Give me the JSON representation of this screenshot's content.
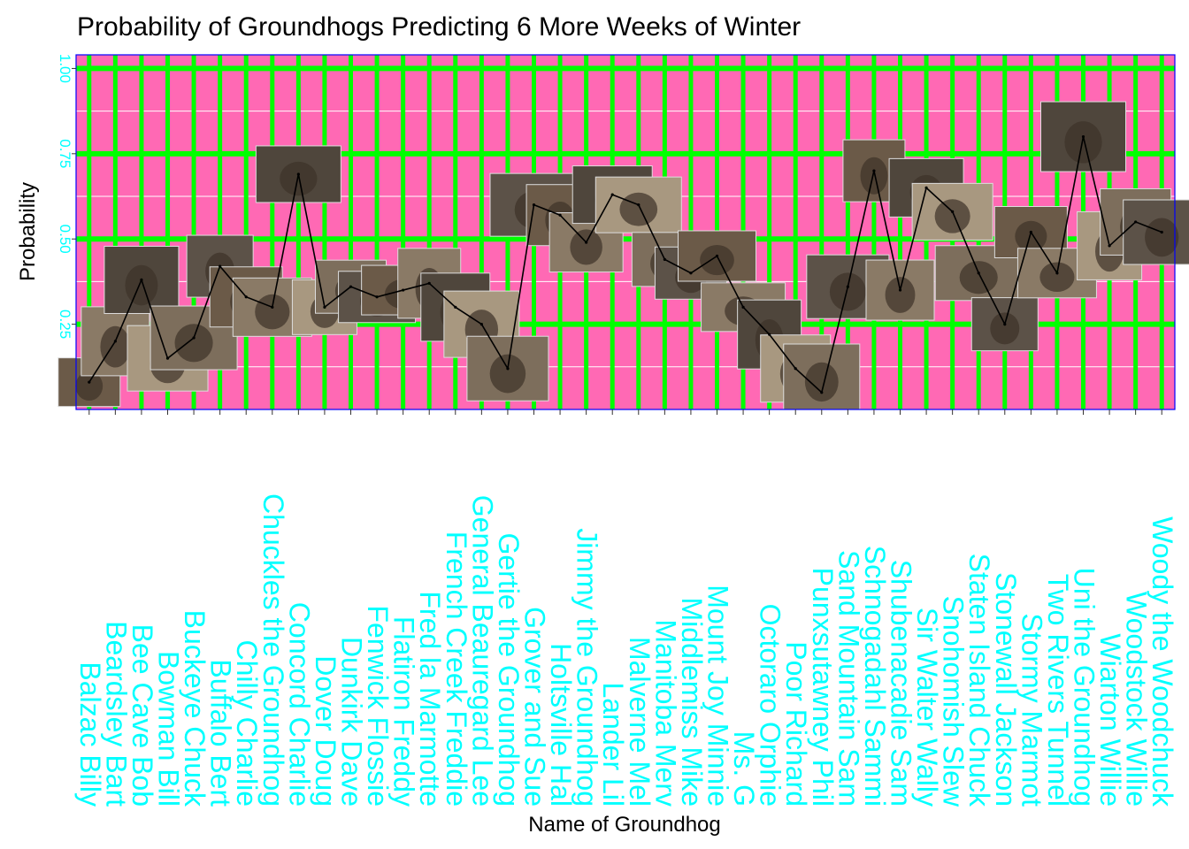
{
  "chart_data": {
    "type": "line",
    "title": "Probability of Groundhogs Predicting 6 More Weeks of Winter",
    "xlabel": "Name of Groundhog",
    "ylabel": "Probability",
    "ylim": [
      0.0,
      1.04
    ],
    "yticks": [
      0.25,
      0.5,
      0.75,
      1.0
    ],
    "ytick_labels": [
      "0.25",
      "0.50",
      "0.75",
      "1.00"
    ],
    "grid": true,
    "legend": "none",
    "categories": [
      "Balzac Billy",
      "Beardsley Bart",
      "Bee Cave Bob",
      "Bowman Bill",
      "Buckeye Chuck",
      "Buffalo Bert",
      "Chilly Charlie",
      "Chuckles the Groundhog",
      "Concord Charlie",
      "Dover Doug",
      "Dunkirk Dave",
      "Fenwick Flossie",
      "Flatiron Freddy",
      "Fred la Marmotte",
      "French Creek Freddie",
      "General Beauregard Lee",
      "Gertie the Groundhog",
      "Grover and Sue",
      "Holtsville Hal",
      "Jimmy the Groundhog",
      "Lander Lil",
      "Malverne Mel",
      "Manitoba Merv",
      "Middlemiss Mike",
      "Mount Joy Minnie",
      "Ms. G",
      "Octoraro Orphie",
      "Poor Richard",
      "Punxsutawney Phil",
      "Sand Mountain Sam",
      "Schnogadahl Sammi",
      "Shubenacadie Sam",
      "Sir Walter Wally",
      "Snohomish Slew",
      "Staten Island Chuck",
      "Stonewall Jackson",
      "Stormy Marmot",
      "Two Rivers Tunnel",
      "Uni the Groundhog",
      "Wiarton Willie",
      "Woodstock Willie",
      "Woody the Woodchuck"
    ],
    "series": [
      {
        "values": [
          0.08,
          0.2,
          0.38,
          0.15,
          0.21,
          0.42,
          0.33,
          0.3,
          0.69,
          0.3,
          0.36,
          0.33,
          0.35,
          0.37,
          0.3,
          0.25,
          0.12,
          0.6,
          0.57,
          0.49,
          0.63,
          0.6,
          0.44,
          0.4,
          0.45,
          0.3,
          0.22,
          0.12,
          0.05,
          0.36,
          0.7,
          0.35,
          0.65,
          0.58,
          0.4,
          0.25,
          0.52,
          0.4,
          0.8,
          0.48,
          0.55,
          0.52
        ],
        "color": "#000000"
      }
    ],
    "colors": {
      "panel_background": "#FF69B4",
      "major_grid": "#00FF00",
      "minor_grid": "#FFFFFF",
      "tick_labels": "#00FFFF",
      "panel_border": "#0000FF",
      "line": "#000000"
    }
  }
}
